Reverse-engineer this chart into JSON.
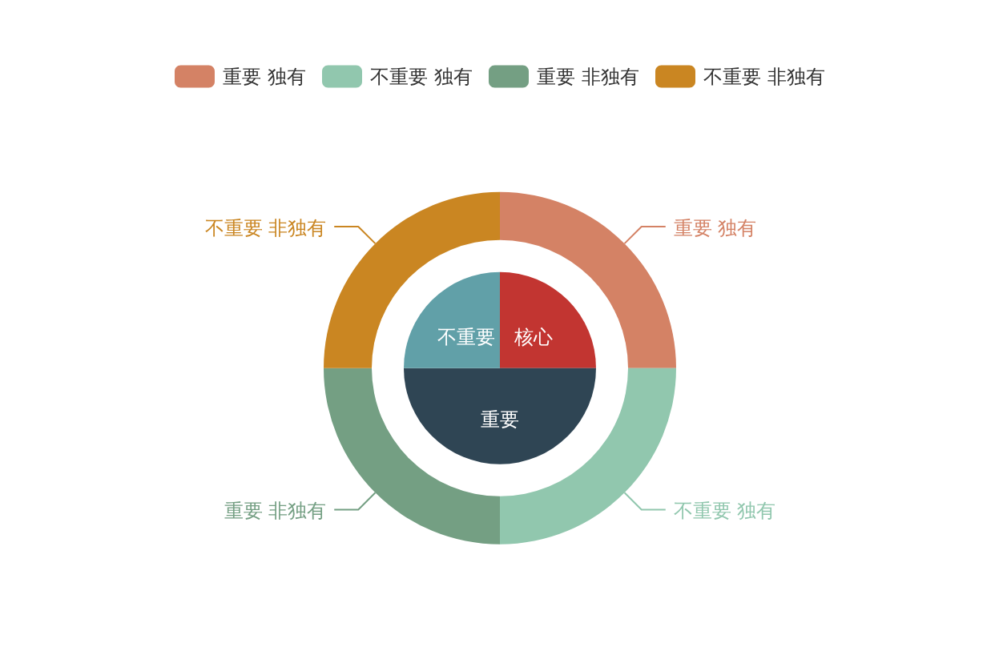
{
  "chart_data": {
    "type": "donut",
    "legend": "top",
    "categories": [
      "核心",
      "重要",
      "不重要",
      "重要 独有",
      "不重要 独有",
      "重要 非独有",
      "不重要 非独有"
    ],
    "colors": [
      "#c23531",
      "#2f4554",
      "#61a0a8",
      "#d48265",
      "#91c7ae",
      "#749f83",
      "#ca8622"
    ],
    "series": [
      {
        "type": "pie",
        "values": [
          25,
          50,
          25,
          null,
          null,
          null,
          null
        ]
      },
      {
        "values": [
          null,
          null,
          null,
          25,
          25,
          25,
          25
        ]
      }
    ]
  }
}
